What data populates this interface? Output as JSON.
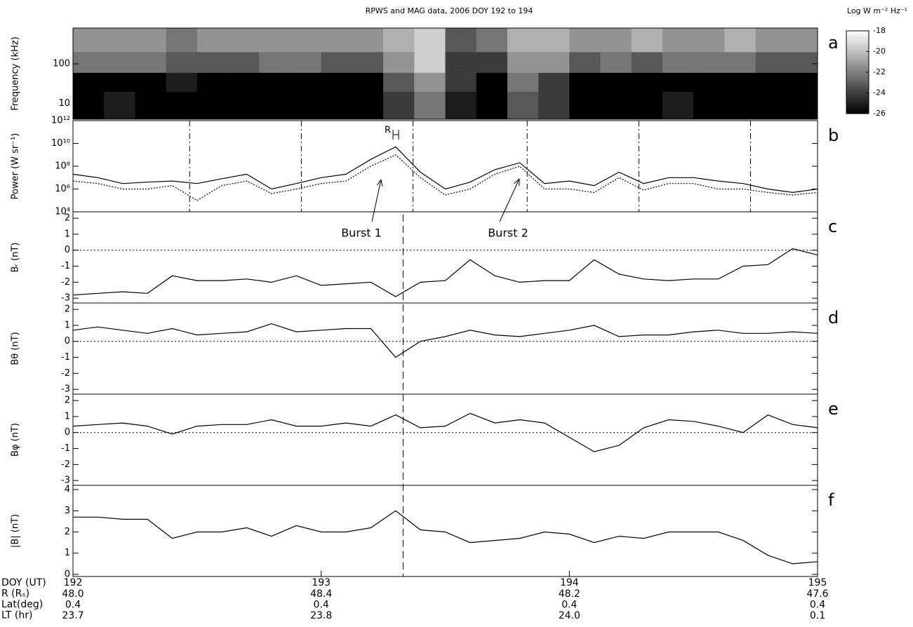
{
  "chart_data": [
    {
      "type": "heatmap",
      "label": "a",
      "title": "RPWS and MAG data, 2006 DOY 192 to 194",
      "ylabel": "Frequency (kHz)",
      "xlim": [
        192,
        195
      ],
      "ylog": true,
      "ylim": [
        4,
        800
      ],
      "yticks": [
        10,
        100
      ],
      "xbins": [
        192,
        192.125,
        192.25,
        192.375,
        192.5,
        192.625,
        192.75,
        192.875,
        193,
        193.125,
        193.25,
        193.375,
        193.5,
        193.625,
        193.75,
        193.875,
        194,
        194.125,
        194.25,
        194.375,
        194.5,
        194.625,
        194.75,
        194.875,
        195
      ],
      "ybins": [
        4,
        20,
        60,
        200,
        800
      ],
      "z": [
        [
          -26,
          -25,
          -26,
          -26,
          -26,
          -26,
          -26,
          -26,
          -26,
          -26,
          -24,
          -22,
          -25,
          -26,
          -23,
          -24,
          -26,
          -26,
          -26,
          -25,
          -26,
          -26,
          -26,
          -26
        ],
        [
          -26,
          -26,
          -26,
          -25,
          -26,
          -26,
          -26,
          -26,
          -26,
          -26,
          -23,
          -21,
          -24,
          -26,
          -22,
          -24,
          -26,
          -26,
          -26,
          -26,
          -26,
          -26,
          -26,
          -26
        ],
        [
          -22,
          -22,
          -22,
          -23,
          -23,
          -23,
          -22,
          -22,
          -23,
          -23,
          -21,
          -19,
          -24,
          -24,
          -21,
          -21,
          -23,
          -22,
          -23,
          -22,
          -22,
          -22,
          -23,
          -23
        ],
        [
          -21,
          -21,
          -21,
          -22,
          -21,
          -21,
          -21,
          -21,
          -21,
          -21,
          -20,
          -19,
          -23,
          -22,
          -20,
          -20,
          -21,
          -21,
          -20,
          -21,
          -21,
          -20,
          -21,
          -21
        ]
      ],
      "zlabel": "Log W m⁻² Hz⁻¹",
      "zlim": [
        -26,
        -18
      ],
      "zticks": [
        -18,
        -20,
        -22,
        -24,
        -26
      ]
    },
    {
      "type": "line",
      "label": "b",
      "ylabel": "Power (W sr⁻¹)",
      "xlim": [
        192,
        195
      ],
      "ylog": true,
      "ylim": [
        10000,
        1000000000000
      ],
      "yticks": [
        {
          "value": 10000,
          "label": "10⁴"
        },
        {
          "value": 1000000,
          "label": "10⁶"
        },
        {
          "value": 100000000,
          "label": "10⁸"
        },
        {
          "value": 10000000000,
          "label": "10¹⁰"
        },
        {
          "value": 1000000000000,
          "label": "10¹²"
        }
      ],
      "vlines": [
        192,
        192.47,
        192.92,
        193.37,
        193.83,
        194.28,
        194.73
      ],
      "annotations": [
        "R",
        "Burst 1",
        "Burst 2"
      ],
      "x": [
        192,
        192.1,
        192.2,
        192.3,
        192.4,
        192.5,
        192.6,
        192.7,
        192.8,
        192.9,
        193,
        193.1,
        193.2,
        193.3,
        193.4,
        193.5,
        193.6,
        193.7,
        193.8,
        193.9,
        194,
        194.1,
        194.2,
        194.3,
        194.4,
        194.5,
        194.6,
        194.7,
        194.8,
        194.9,
        195
      ],
      "series": [
        {
          "color": "#000000",
          "style": "solid",
          "values": [
            20000000,
            10000000,
            3000000,
            4000000,
            5000000,
            3000000,
            8000000,
            20000000,
            1000000,
            3000000,
            10000000,
            20000000,
            400000000,
            5000000000,
            30000000,
            1000000,
            4000000,
            50000000,
            200000000,
            3000000,
            5000000,
            2000000,
            30000000,
            3000000,
            10000000,
            10000000,
            5000000,
            3000000,
            1000000,
            500000,
            1000000
          ]
        },
        {
          "color": "#000000",
          "style": "dotted",
          "values": [
            5000000,
            3000000,
            1000000,
            1000000,
            2000000,
            100000,
            2000000,
            5000000,
            400000,
            1000000,
            3000000,
            5000000,
            100000000,
            1000000000,
            10000000,
            300000,
            1000000,
            20000000,
            100000000,
            1000000,
            1000000,
            500000,
            10000000,
            800000,
            3000000,
            3000000,
            1000000,
            1000000,
            500000,
            300000,
            500000
          ]
        }
      ]
    },
    {
      "type": "line",
      "label": "c",
      "ylabel": "Bᵣ (nT)",
      "xlim": [
        192,
        195
      ],
      "ylim": [
        -3.3,
        2.4
      ],
      "yticks": [
        -3,
        -2,
        -1,
        0,
        1,
        2
      ],
      "zero_line": true,
      "event_x": 193.33,
      "x": [
        192,
        192.1,
        192.2,
        192.3,
        192.4,
        192.5,
        192.6,
        192.7,
        192.8,
        192.9,
        193,
        193.1,
        193.2,
        193.3,
        193.4,
        193.5,
        193.6,
        193.7,
        193.8,
        193.9,
        194,
        194.1,
        194.2,
        194.3,
        194.4,
        194.5,
        194.6,
        194.7,
        194.8,
        194.9,
        195
      ],
      "series": [
        {
          "color": "#000000",
          "style": "solid",
          "values": [
            -2.8,
            -2.7,
            -2.6,
            -2.7,
            -1.6,
            -1.9,
            -1.9,
            -1.8,
            -2.0,
            -1.6,
            -2.2,
            -2.1,
            -2.0,
            -2.9,
            -2.0,
            -1.9,
            -0.6,
            -1.6,
            -2.0,
            -1.9,
            -1.9,
            -0.6,
            -1.5,
            -1.8,
            -1.9,
            -1.8,
            -1.8,
            -1.0,
            -0.9,
            0.1,
            -0.3
          ]
        }
      ]
    },
    {
      "type": "line",
      "label": "d",
      "ylabel": "Bθ (nT)",
      "xlim": [
        192,
        195
      ],
      "ylim": [
        -3.3,
        2.4
      ],
      "yticks": [
        -3,
        -2,
        -1,
        0,
        1,
        2
      ],
      "zero_line": true,
      "x": [
        192,
        192.1,
        192.2,
        192.3,
        192.4,
        192.5,
        192.6,
        192.7,
        192.8,
        192.9,
        193,
        193.1,
        193.2,
        193.3,
        193.4,
        193.5,
        193.6,
        193.7,
        193.8,
        193.9,
        194,
        194.1,
        194.2,
        194.3,
        194.4,
        194.5,
        194.6,
        194.7,
        194.8,
        194.9,
        195
      ],
      "series": [
        {
          "color": "#000000",
          "style": "solid",
          "values": [
            0.7,
            0.9,
            0.7,
            0.5,
            0.8,
            0.4,
            0.5,
            0.6,
            1.1,
            0.6,
            0.7,
            0.8,
            0.8,
            -1.0,
            0.0,
            0.3,
            0.7,
            0.4,
            0.3,
            0.5,
            0.7,
            1.0,
            0.3,
            0.4,
            0.4,
            0.6,
            0.7,
            0.5,
            0.5,
            0.6,
            0.5
          ]
        }
      ]
    },
    {
      "type": "line",
      "label": "e",
      "ylabel": "Bφ (nT)",
      "xlim": [
        192,
        195
      ],
      "ylim": [
        -3.3,
        2.4
      ],
      "yticks": [
        -3,
        -2,
        -1,
        0,
        1,
        2
      ],
      "zero_line": true,
      "x": [
        192,
        192.1,
        192.2,
        192.3,
        192.4,
        192.5,
        192.6,
        192.7,
        192.8,
        192.9,
        193,
        193.1,
        193.2,
        193.3,
        193.4,
        193.5,
        193.6,
        193.7,
        193.8,
        193.9,
        194,
        194.1,
        194.2,
        194.3,
        194.4,
        194.5,
        194.6,
        194.7,
        194.8,
        194.9,
        195
      ],
      "series": [
        {
          "color": "#000000",
          "style": "solid",
          "values": [
            0.4,
            0.5,
            0.6,
            0.4,
            -0.1,
            0.4,
            0.5,
            0.5,
            0.8,
            0.4,
            0.4,
            0.6,
            0.4,
            1.1,
            0.3,
            0.4,
            1.2,
            0.6,
            0.8,
            0.6,
            -0.3,
            -1.2,
            -0.8,
            0.3,
            0.8,
            0.7,
            0.4,
            0.0,
            1.1,
            0.5,
            0.3
          ]
        }
      ]
    },
    {
      "type": "line",
      "label": "f",
      "ylabel": "|B| (nT)",
      "xlim": [
        192,
        195
      ],
      "ylim": [
        -0.1,
        4.2
      ],
      "yticks": [
        0,
        1,
        2,
        3,
        4
      ],
      "xticks": [
        192,
        193,
        194,
        195
      ],
      "x": [
        192,
        192.1,
        192.2,
        192.3,
        192.4,
        192.5,
        192.6,
        192.7,
        192.8,
        192.9,
        193,
        193.1,
        193.2,
        193.3,
        193.4,
        193.5,
        193.6,
        193.7,
        193.8,
        193.9,
        194,
        194.1,
        194.2,
        194.3,
        194.4,
        194.5,
        194.6,
        194.7,
        194.8,
        194.9,
        195
      ],
      "series": [
        {
          "color": "#000000",
          "style": "solid",
          "values": [
            2.7,
            2.7,
            2.6,
            2.6,
            1.7,
            2.0,
            2.0,
            2.2,
            1.8,
            2.3,
            2.0,
            2.0,
            2.2,
            3.0,
            2.1,
            2.0,
            1.5,
            1.6,
            1.7,
            2.0,
            1.9,
            1.5,
            1.8,
            1.7,
            2.0,
            2.0,
            2.0,
            1.6,
            0.9,
            0.5,
            0.6
          ]
        }
      ]
    }
  ],
  "ephemeris": {
    "labels": [
      "DOY (UT)",
      "R (Rₛ)",
      "Lat(deg)",
      "LT (hr)"
    ],
    "rows": [
      [
        "48.0",
        "48.4",
        "48.2",
        "47.6"
      ],
      [
        "0.4",
        "0.4",
        "0.4",
        "0.4"
      ],
      [
        "23.7",
        "23.8",
        "24.0",
        "0.1"
      ]
    ]
  }
}
